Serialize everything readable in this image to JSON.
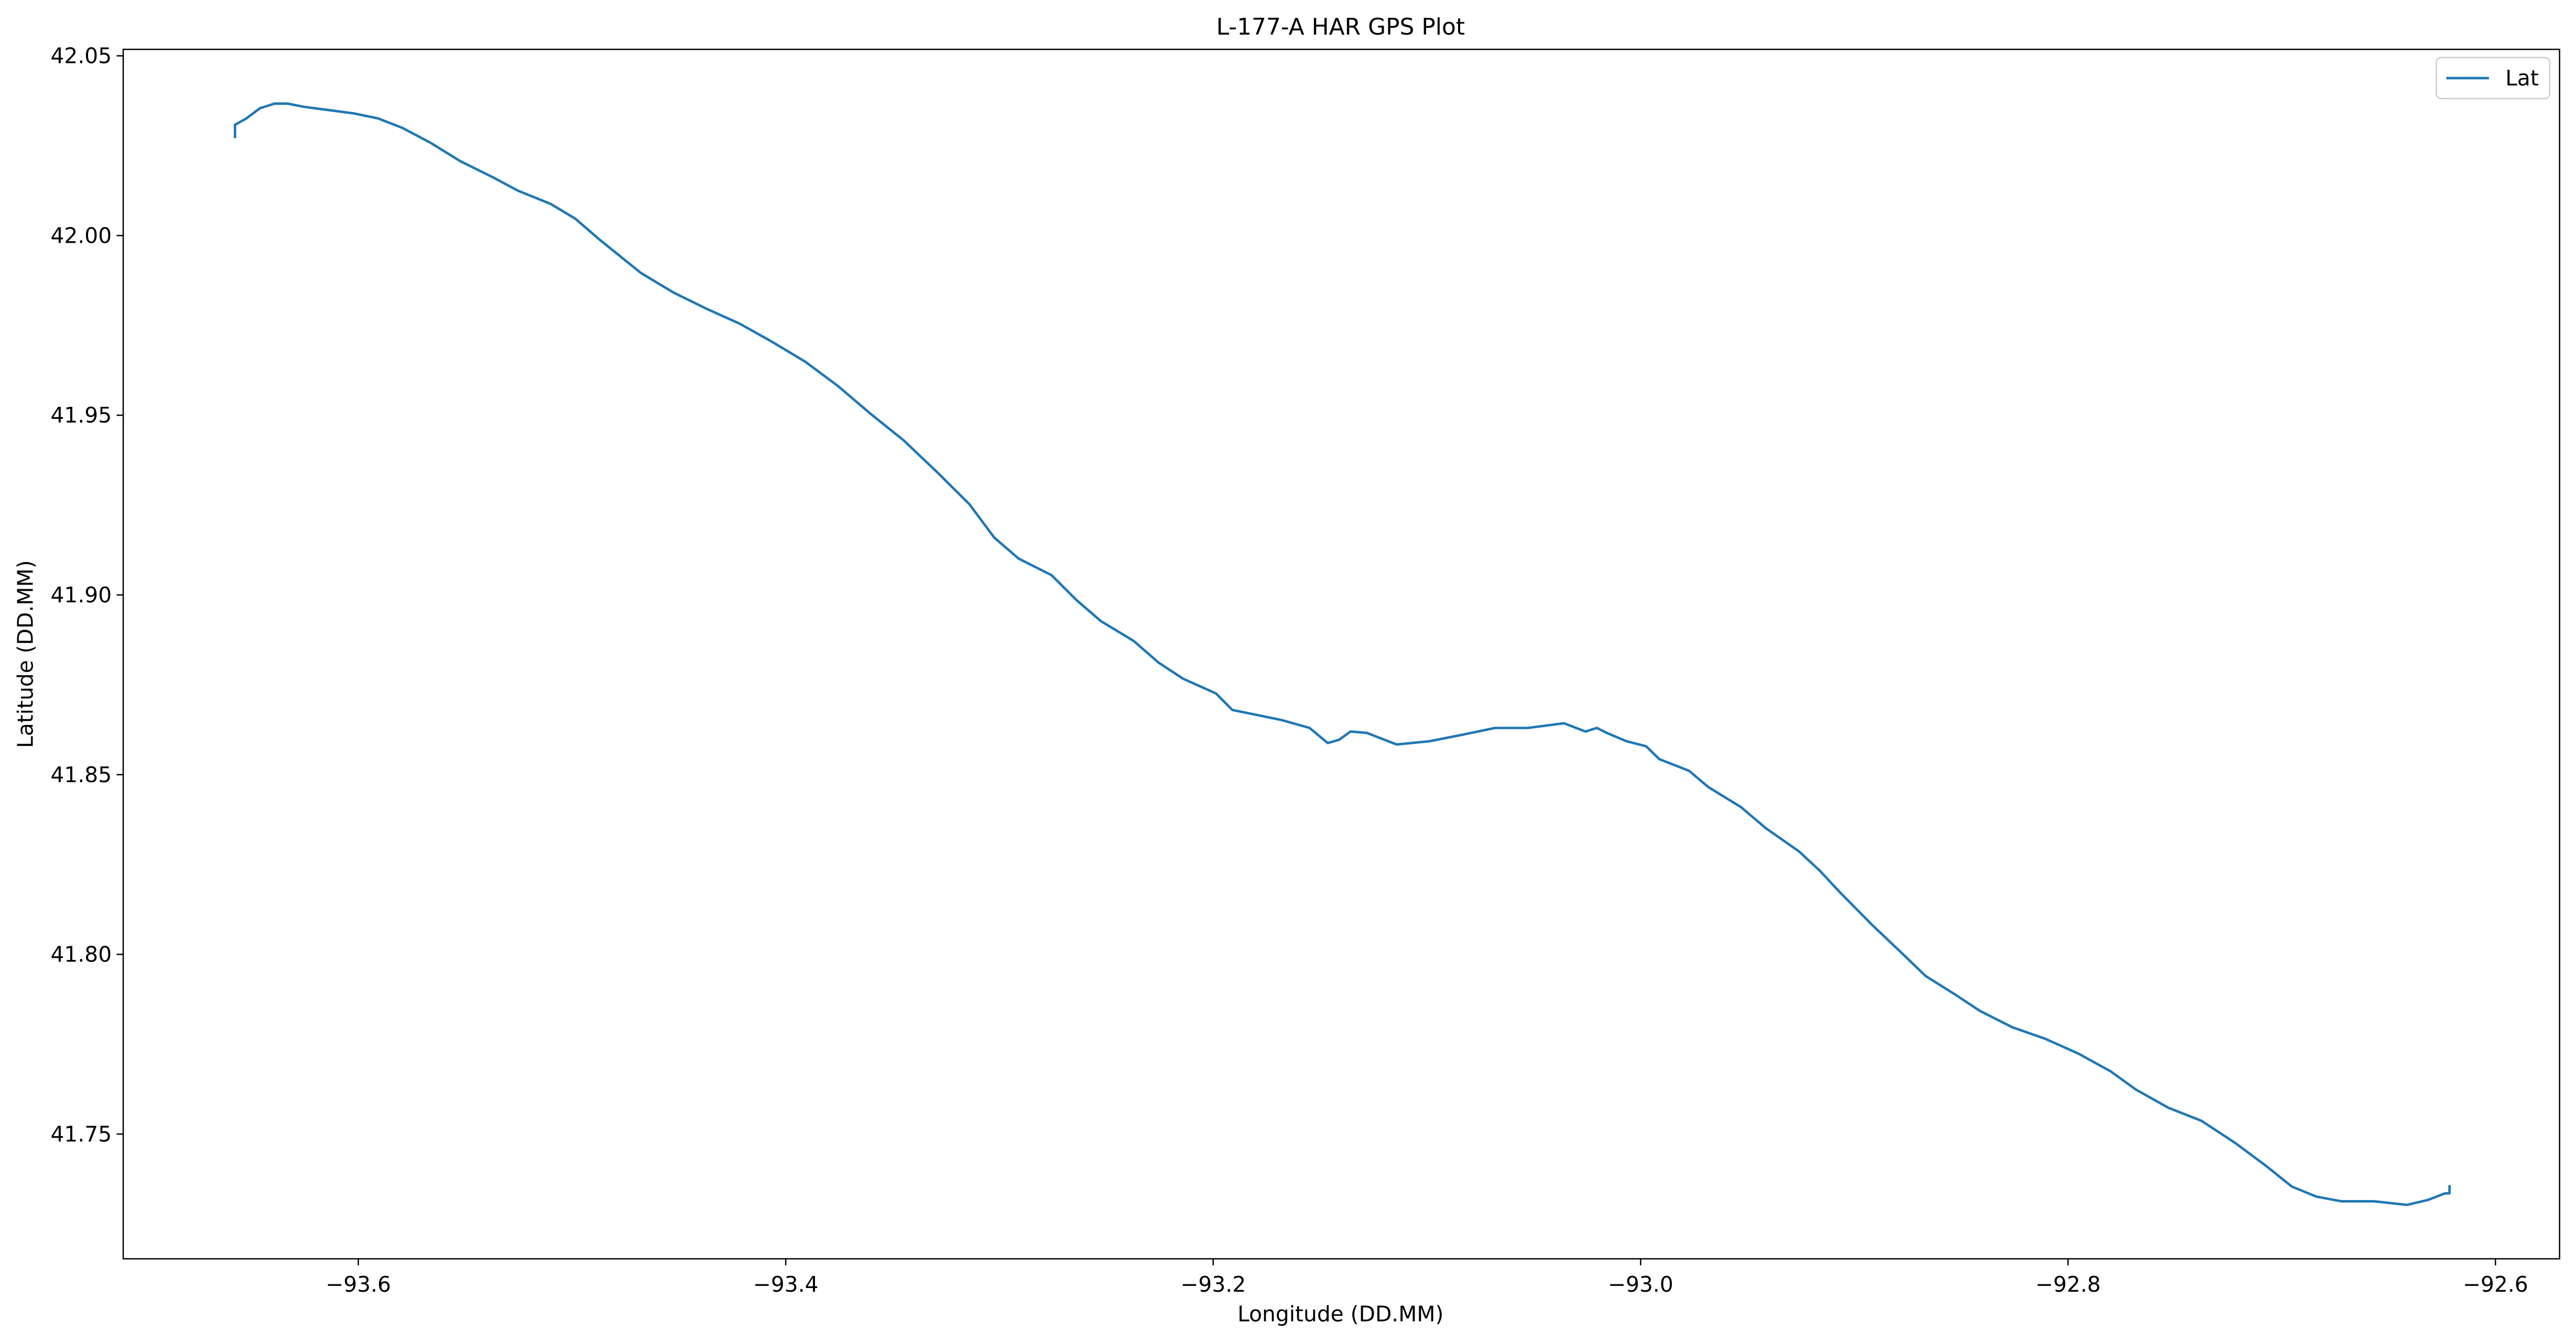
{
  "chart_data": {
    "type": "line",
    "title": "L-177-A HAR GPS Plot",
    "x_label": "Longitude (DD.MM)",
    "y_label": "Latitude (DD.MM)",
    "x": [
      -93.6577,
      -93.6577,
      -93.6523,
      -93.6461,
      -93.6392,
      -93.633,
      -93.6254,
      -93.6138,
      -93.6023,
      -93.5908,
      -93.5792,
      -93.5662,
      -93.5523,
      -93.537,
      -93.5254,
      -93.51,
      -93.4985,
      -93.487,
      -93.4678,
      -93.4524,
      -93.437,
      -93.4216,
      -93.4063,
      -93.3909,
      -93.3755,
      -93.3601,
      -93.3448,
      -93.3294,
      -93.314,
      -93.3025,
      -93.291,
      -93.2756,
      -93.264,
      -93.2525,
      -93.2372,
      -93.2256,
      -93.2141,
      -93.1987,
      -93.191,
      -93.1795,
      -93.168,
      -93.1549,
      -93.1464,
      -93.1411,
      -93.1357,
      -93.128,
      -93.1142,
      -93.0988,
      -93.0834,
      -93.0681,
      -93.0527,
      -93.0358,
      -93.0258,
      -93.0204,
      -93.0158,
      -93.0066,
      -92.9974,
      -92.9912,
      -92.9774,
      -92.9682,
      -92.9531,
      -92.9414,
      -92.926,
      -92.916,
      -92.9068,
      -92.8915,
      -92.8761,
      -92.8667,
      -92.853,
      -92.8413,
      -92.826,
      -92.8106,
      -92.7952,
      -92.7799,
      -92.7683,
      -92.753,
      -92.7376,
      -92.7222,
      -92.7068,
      -92.6953,
      -92.6838,
      -92.6722,
      -92.6568,
      -92.6414,
      -92.6314,
      -92.6237,
      -92.6215,
      -92.6215
    ],
    "series": [
      {
        "name": "Lat",
        "color": "#1f77b4",
        "values": [
          42.0271,
          42.0308,
          42.0326,
          42.0354,
          42.0367,
          42.0367,
          42.0358,
          42.0349,
          42.034,
          42.0326,
          42.0299,
          42.0258,
          42.0207,
          42.0162,
          42.0125,
          42.0088,
          42.0047,
          41.9988,
          41.9896,
          41.9841,
          41.9796,
          41.9755,
          41.9704,
          41.9649,
          41.9581,
          41.9503,
          41.943,
          41.9343,
          41.9252,
          41.916,
          41.9101,
          41.9055,
          41.8986,
          41.8927,
          41.8872,
          41.8812,
          41.8767,
          41.8726,
          41.868,
          41.8666,
          41.8652,
          41.863,
          41.8588,
          41.8597,
          41.862,
          41.8616,
          41.8584,
          41.8593,
          41.8611,
          41.863,
          41.863,
          41.8643,
          41.862,
          41.863,
          41.8616,
          41.8593,
          41.8579,
          41.8543,
          41.8511,
          41.8465,
          41.841,
          41.8351,
          41.8287,
          41.8232,
          41.8173,
          41.8081,
          41.7994,
          41.794,
          41.7889,
          41.7843,
          41.7797,
          41.7765,
          41.7724,
          41.7674,
          41.7624,
          41.7573,
          41.7537,
          41.7477,
          41.7409,
          41.7354,
          41.7326,
          41.7313,
          41.7313,
          41.7303,
          41.7317,
          41.7335,
          41.7335,
          41.7358
        ]
      }
    ],
    "xlim": [
      -93.71,
      -92.57
    ],
    "ylim": [
      41.7153,
      42.0518
    ],
    "xticks": [
      {
        "value": -93.6,
        "label": "−93.6"
      },
      {
        "value": -93.4,
        "label": "−93.4"
      },
      {
        "value": -93.2,
        "label": "−93.2"
      },
      {
        "value": -93.0,
        "label": "−93.0"
      },
      {
        "value": -92.8,
        "label": "−92.8"
      },
      {
        "value": -92.6,
        "label": "−92.6"
      }
    ],
    "yticks": [
      41.75,
      {
        "value": 41.8,
        "label": "41.80"
      },
      41.85,
      {
        "value": 41.9,
        "label": "41.90"
      },
      41.95,
      {
        "value": 42.0,
        "label": "42.00"
      },
      42.05
    ],
    "grid": false,
    "legend": "upper right"
  }
}
